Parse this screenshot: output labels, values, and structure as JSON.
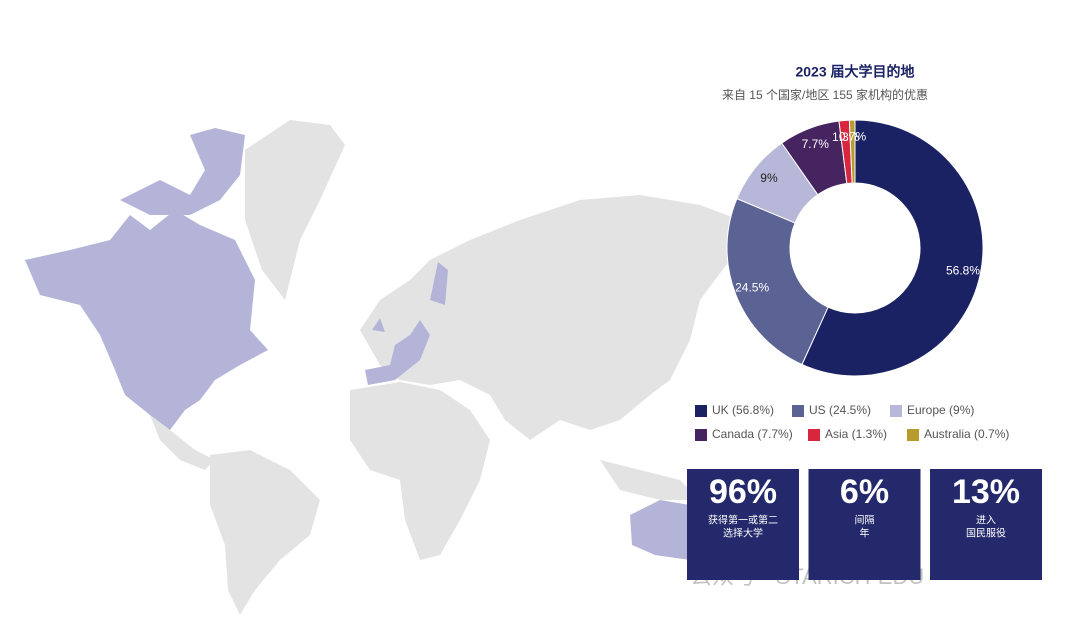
{
  "chart_data": {
    "type": "donut",
    "title": "2023 届大学目的地",
    "subtitle": "来自 15 个国家/地区 155 家机构的优惠",
    "categories": [
      "UK (56.8%)",
      "US (24.5%)",
      "Europe (9%)",
      "Canada (7.7%)",
      "Asia (1.3%)",
      "Australia (0.7%)"
    ],
    "values": [
      56.8,
      24.5,
      9,
      7.7,
      1.3,
      0.7
    ],
    "value_labels": [
      "56.8%",
      "24.5%",
      "9%",
      "7.7%",
      "1.3%",
      "0.7%"
    ],
    "colors": [
      "#1b2264",
      "#5b6294",
      "#b7b7d9",
      "#452460",
      "#d7263d",
      "#b89b2e"
    ]
  },
  "stats": [
    {
      "label": "96%",
      "lines": [
        "获得第一或第二",
        "选择大学"
      ]
    },
    {
      "label": "6%",
      "lines": [
        "间隔",
        "年"
      ]
    },
    {
      "label": "13%",
      "lines": [
        "进入",
        "国民服役"
      ]
    }
  ],
  "watermark": "公众号 · STARICH-EDU"
}
